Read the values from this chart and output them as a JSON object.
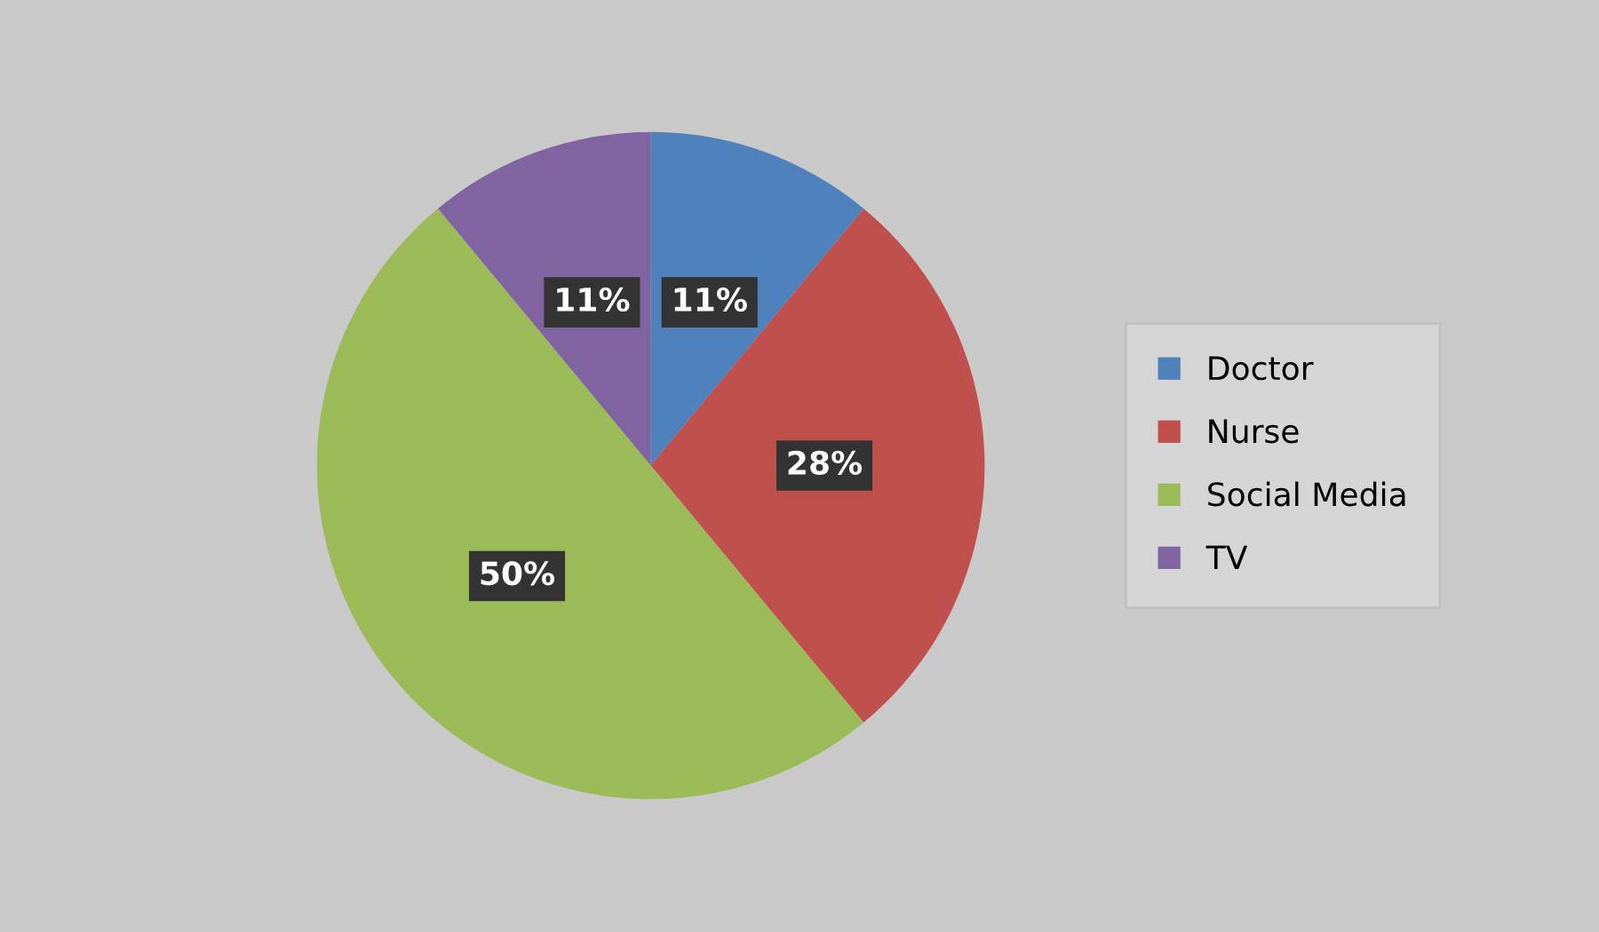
{
  "chart_data": {
    "type": "pie",
    "categories": [
      "Doctor",
      "Nurse",
      "Social Media",
      "TV"
    ],
    "values": [
      11,
      28,
      50,
      11
    ],
    "value_labels": [
      "11%",
      "28%",
      "50%",
      "11%"
    ],
    "colors": [
      "#4f81bd",
      "#c0504d",
      "#9bbb59",
      "#8064a2"
    ],
    "legend": "right"
  }
}
